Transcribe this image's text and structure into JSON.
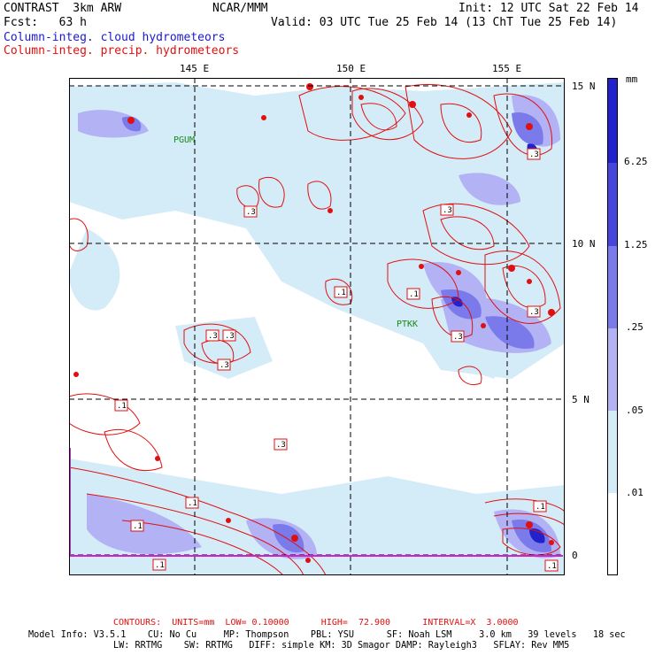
{
  "header": {
    "model": "CONTRAST  3km ARW",
    "center": "NCAR/MMM",
    "init": "Init: 12 UTC Sat 22 Feb 14",
    "fcst": "Fcst:   63 h",
    "valid": "Valid: 03 UTC Tue 25 Feb 14 (13 ChT Tue 25 Feb 14)",
    "field1": "Column-integ. cloud hydrometeors",
    "field2": "Column-integ. precip. hydrometeors"
  },
  "axes": {
    "lon_labels": [
      "145 E",
      "150 E",
      "155 E"
    ],
    "lat_labels": [
      "15 N",
      "10 N",
      "5 N",
      "0"
    ]
  },
  "stations": [
    "PGUM",
    "PTKK"
  ],
  "contour_labels": [
    ".3",
    ".3",
    ".3",
    ".3",
    ".1",
    ".3",
    ".1",
    ".3",
    ".3",
    ".1",
    ".1",
    ".1",
    ".1",
    ".1",
    ".3",
    ".3",
    ".1"
  ],
  "colorbar": {
    "unit": "mm",
    "labels": [
      "6.25",
      "1.25",
      ".25",
      ".05",
      ".01"
    ],
    "colors": [
      "#2222cc",
      "#4646dd",
      "#7a7aea",
      "#b2b2f4",
      "#d4ecf8",
      "#ffffff"
    ]
  },
  "footer": {
    "contours": "CONTOURS:  UNITS=mm  LOW= 0.10000      HIGH=  72.900      INTERVAL=X  3.0000",
    "model_info_1": "Model Info: V3.5.1    CU: No Cu     MP: Thompson    PBL: YSU      SF: Noah LSM     3.0 km   39 levels   18 sec",
    "model_info_2": "LW: RRTMG    SW: RRTMG   DIFF: simple KM: 3D Smagor DAMP: Rayleigh3   SFLAY: Rev MM5"
  },
  "colors": {
    "precip_contour": "#e01010",
    "cloud_title": "#1a1acc",
    "boundary": "#d020d0"
  }
}
